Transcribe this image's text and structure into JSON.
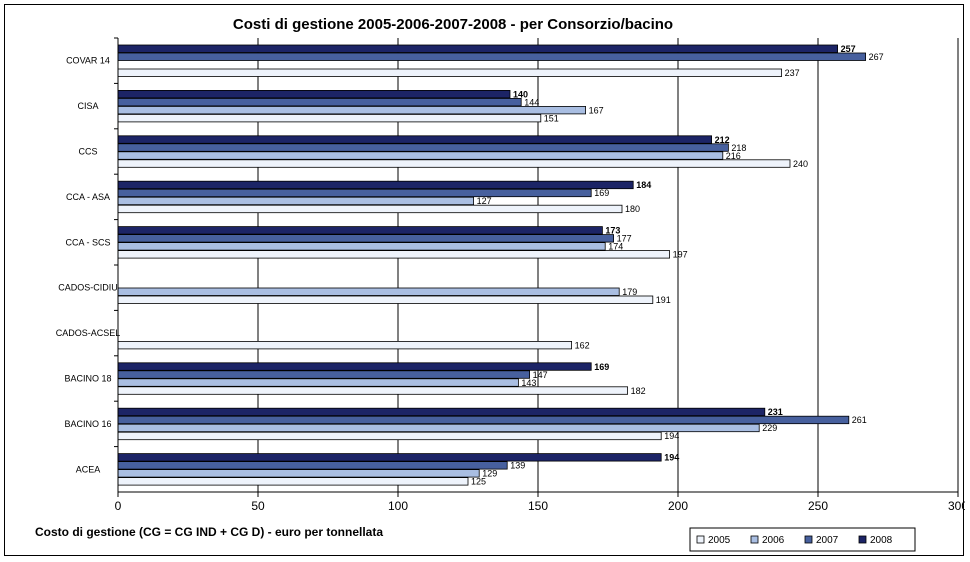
{
  "chart_data": {
    "type": "bar",
    "orientation": "horizontal",
    "title": "Costi di gestione 2005-2006-2007-2008 - per Consorzio/bacino",
    "xlabel": "Costo di gestione (CG = CG IND + CG D) - euro per tonnellata",
    "xlim": [
      0,
      300
    ],
    "xticks": [
      "0",
      "50",
      "100",
      "150",
      "200",
      "250",
      "300"
    ],
    "grid": "vertical",
    "legend_position": "bottom-right",
    "categories": [
      "COVAR 14",
      "CISA",
      "CCS",
      "CCA - ASA",
      "CCA - SCS",
      "CADOS-CIDIU",
      "CADOS-ACSEL",
      "BACINO 18",
      "BACINO 16",
      "ACEA"
    ],
    "series": [
      {
        "name": "2008",
        "color": "#1c2466",
        "values": [
          257,
          140,
          212,
          184,
          173,
          null,
          null,
          169,
          231,
          194
        ]
      },
      {
        "name": "2007",
        "color": "#47609e",
        "values": [
          267,
          144,
          218,
          169,
          177,
          null,
          null,
          147,
          261,
          139
        ]
      },
      {
        "name": "2006",
        "color": "#a9bee2",
        "values": [
          null,
          167,
          216,
          127,
          174,
          179,
          null,
          143,
          229,
          129
        ]
      },
      {
        "name": "2005",
        "color": "#eef3fb",
        "values": [
          237,
          151,
          240,
          180,
          197,
          191,
          162,
          182,
          194,
          125
        ]
      }
    ],
    "legend": [
      "2005",
      "2006",
      "2007",
      "2008"
    ]
  }
}
